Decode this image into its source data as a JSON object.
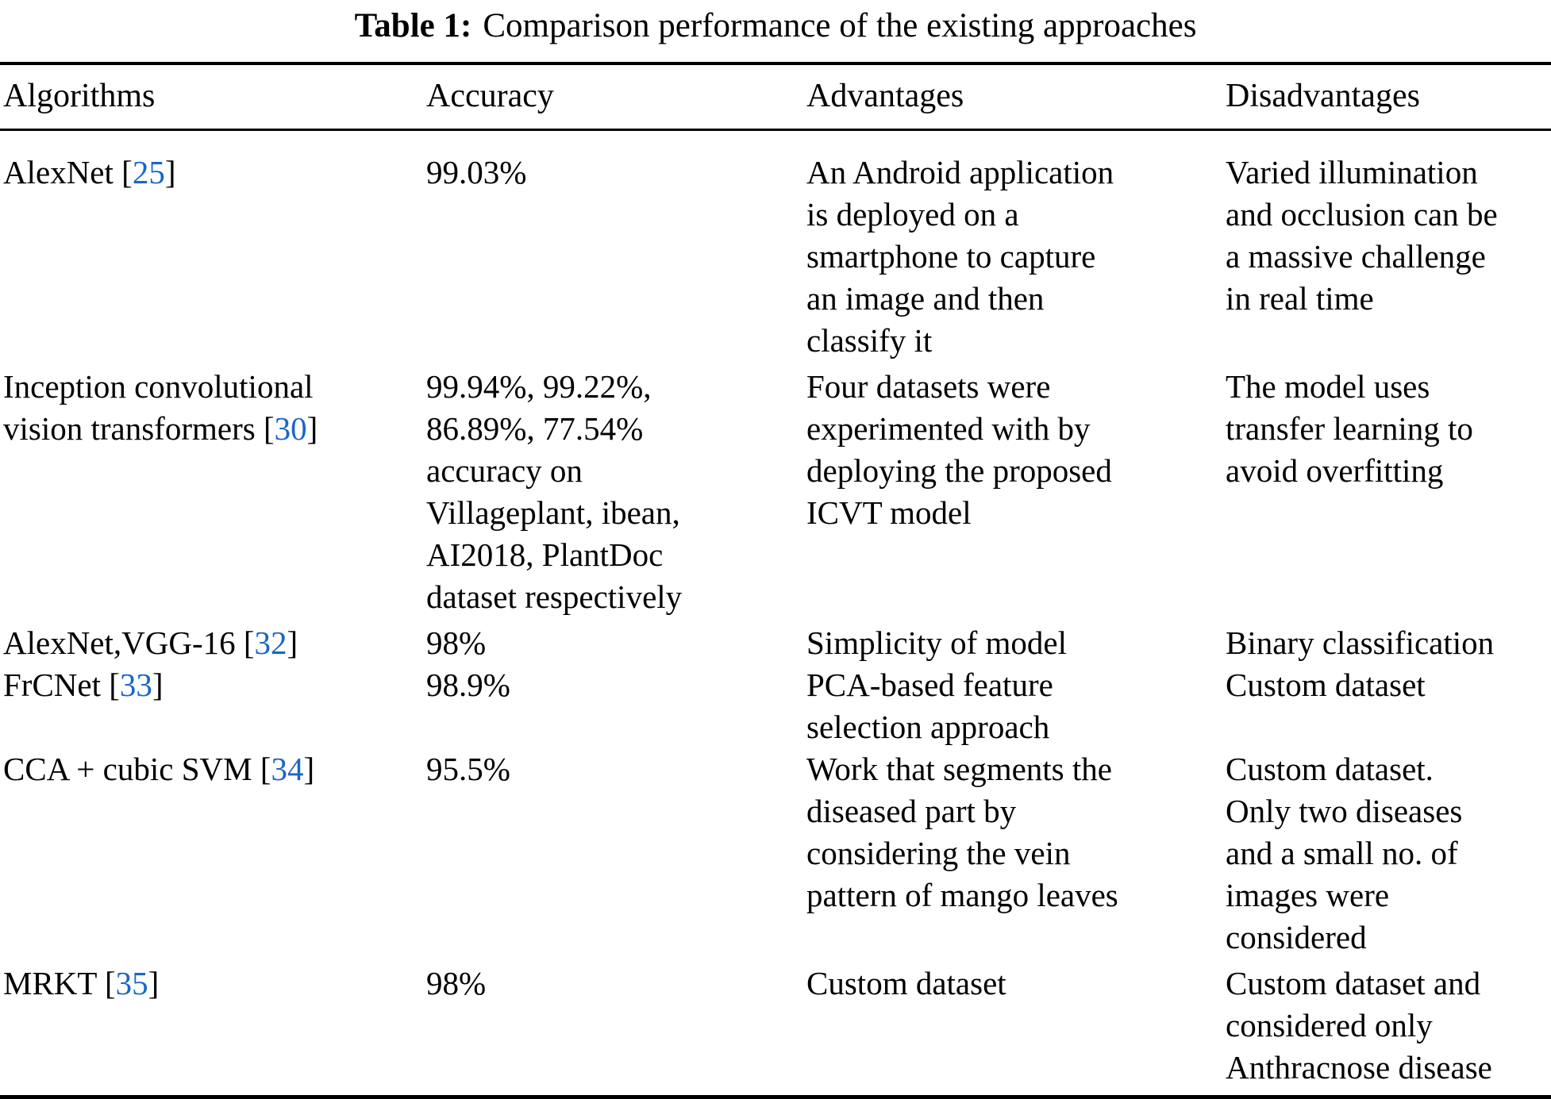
{
  "caption": {
    "label": "Table 1:",
    "text": "Comparison performance of the existing approaches"
  },
  "columns": [
    "Algorithms",
    "Accuracy",
    "Advantages",
    "Disadvantages"
  ],
  "citation_color": "#1a66c8",
  "rows": [
    {
      "algorithm_pre": "AlexNet [",
      "citation": "25",
      "algorithm_post": "]",
      "accuracy": "99.03%",
      "advantages": "An Android application\nis deployed on a\nsmartphone to capture\nan image and then\nclassify it",
      "disadvantages": "Varied illumination\nand occlusion can be\na massive challenge\nin real time"
    },
    {
      "algorithm_pre": "Inception convolutional\nvision transformers [",
      "citation": "30",
      "algorithm_post": "]",
      "accuracy": "99.94%, 99.22%,\n86.89%, 77.54%\naccuracy on\nVillageplant, ibean,\nAI2018, PlantDoc\ndataset respectively",
      "advantages": "Four datasets were\nexperimented with by\ndeploying the proposed\nICVT model",
      "disadvantages": "The model uses\ntransfer learning to\navoid overfitting"
    },
    {
      "algorithm_pre": "AlexNet,VGG-16 [",
      "citation": "32",
      "algorithm_post": "]",
      "accuracy": "98%",
      "advantages": "Simplicity of model",
      "disadvantages": "Binary classification"
    },
    {
      "algorithm_pre": "FrCNet [",
      "citation": "33",
      "algorithm_post": "]",
      "accuracy": "98.9%",
      "advantages": "PCA-based feature\nselection approach",
      "disadvantages": "Custom dataset"
    },
    {
      "algorithm_pre": "CCA + cubic SVM [",
      "citation": "34",
      "algorithm_post": "]",
      "accuracy": "95.5%",
      "advantages": "Work that segments the\ndiseased part by\nconsidering the vein\npattern of mango leaves",
      "disadvantages": "Custom dataset.\nOnly two diseases\nand a small no. of\nimages were\nconsidered"
    },
    {
      "algorithm_pre": "MRKT [",
      "citation": "35",
      "algorithm_post": "]",
      "accuracy": "98%",
      "advantages": "Custom dataset",
      "disadvantages": "Custom dataset and\nconsidered only\nAnthracnose disease"
    }
  ]
}
